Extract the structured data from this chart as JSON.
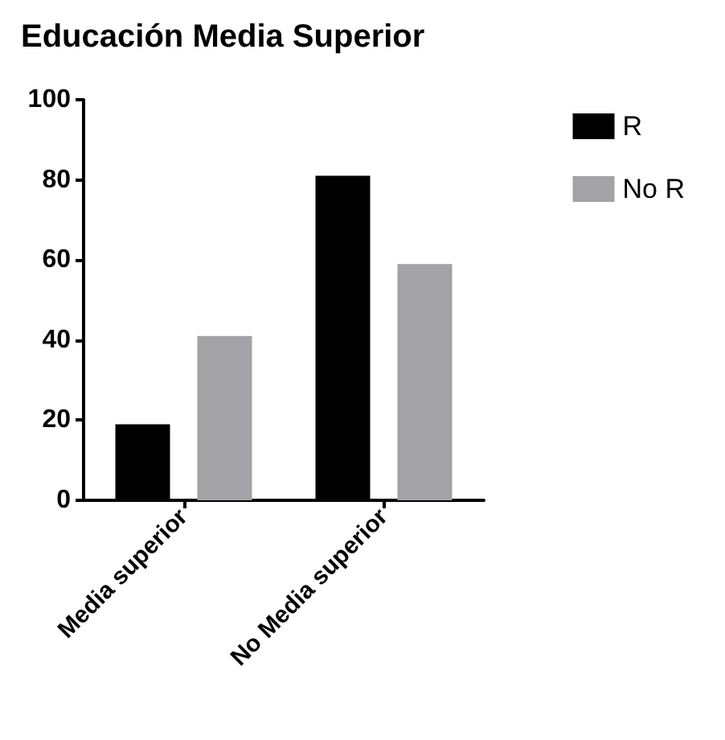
{
  "chart_data": {
    "type": "bar",
    "title": "Educación Media Superior",
    "categories": [
      "Media superior",
      "No Media superior"
    ],
    "series": [
      {
        "name": "R",
        "color": "#000000",
        "values": [
          19,
          81
        ]
      },
      {
        "name": "No R",
        "color": "#a3a3a7",
        "values": [
          41,
          59
        ]
      }
    ],
    "ylim": [
      0,
      100
    ],
    "yticks": [
      0,
      20,
      40,
      60,
      80,
      100
    ],
    "grid": false,
    "legend": "top right"
  }
}
